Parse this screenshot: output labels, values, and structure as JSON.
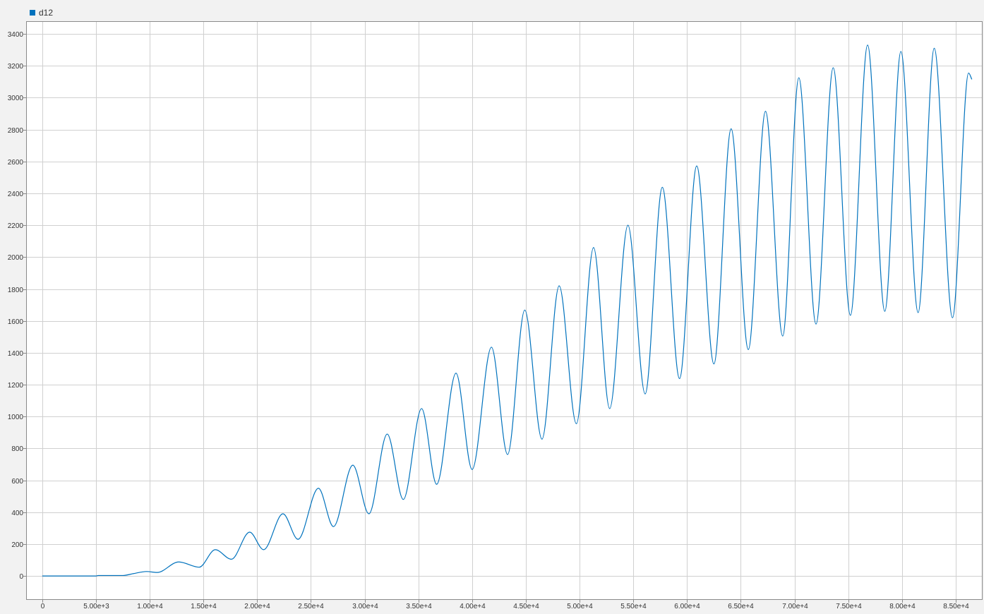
{
  "legend": {
    "series_name": "d12"
  },
  "colors": {
    "series": "#0072bd",
    "grid": "#d0d0d0",
    "plot_background": "#ffffff",
    "axis": "#8a8a8a"
  },
  "chart_data": {
    "type": "line",
    "title": "",
    "xlabel": "",
    "ylabel": "",
    "xlim": [
      -1500,
      87500
    ],
    "ylim": [
      -150,
      3480
    ],
    "grid": true,
    "legend_position": "top-left",
    "x_ticks": [
      0,
      5000,
      10000,
      15000,
      20000,
      25000,
      30000,
      35000,
      40000,
      45000,
      50000,
      55000,
      60000,
      65000,
      70000,
      75000,
      80000,
      85000
    ],
    "x_tick_labels": [
      "0",
      "5.00e+3",
      "1.00e+4",
      "1.50e+4",
      "2.00e+4",
      "2.50e+4",
      "3.00e+4",
      "3.50e+4",
      "4.00e+4",
      "4.50e+4",
      "5.00e+4",
      "5.50e+4",
      "6.00e+4",
      "6.50e+4",
      "7.00e+4",
      "7.50e+4",
      "8.00e+4",
      "8.50e+4"
    ],
    "y_ticks": [
      0,
      200,
      400,
      600,
      800,
      1000,
      1200,
      1400,
      1600,
      1800,
      2000,
      2200,
      2400,
      2600,
      2800,
      3000,
      3200,
      3400
    ],
    "y_tick_labels": [
      "0",
      "200",
      "400",
      "600",
      "800",
      "1000",
      "1200",
      "1400",
      "1600",
      "1800",
      "2000",
      "2200",
      "2400",
      "2600",
      "2800",
      "3000",
      "3200",
      "3400"
    ],
    "series": [
      {
        "name": "d12",
        "color": "#0072bd",
        "points": [
          [
            0,
            0
          ],
          [
            5000,
            0
          ],
          [
            5200,
            3
          ],
          [
            7500,
            3
          ],
          [
            8500,
            15
          ],
          [
            9700,
            28
          ],
          [
            10700,
            22
          ],
          [
            12700,
            88
          ],
          [
            14600,
            55
          ],
          [
            16100,
            165
          ],
          [
            17600,
            105
          ],
          [
            19300,
            275
          ],
          [
            20600,
            165
          ],
          [
            22400,
            390
          ],
          [
            23800,
            230
          ],
          [
            25700,
            550
          ],
          [
            27100,
            310
          ],
          [
            28900,
            695
          ],
          [
            30400,
            390
          ],
          [
            32100,
            890
          ],
          [
            33600,
            480
          ],
          [
            35300,
            1050
          ],
          [
            36700,
            575
          ],
          [
            38500,
            1272
          ],
          [
            40000,
            668
          ],
          [
            41800,
            1435
          ],
          [
            43300,
            762
          ],
          [
            44900,
            1668
          ],
          [
            46500,
            858
          ],
          [
            48100,
            1820
          ],
          [
            49700,
            955
          ],
          [
            51300,
            2060
          ],
          [
            52800,
            1050
          ],
          [
            54500,
            2200
          ],
          [
            56100,
            1142
          ],
          [
            57700,
            2438
          ],
          [
            59300,
            1238
          ],
          [
            60900,
            2572
          ],
          [
            62500,
            1330
          ],
          [
            64100,
            2805
          ],
          [
            65700,
            1420
          ],
          [
            67300,
            2915
          ],
          [
            68900,
            1505
          ],
          [
            70400,
            3125
          ],
          [
            72000,
            1580
          ],
          [
            73600,
            3188
          ],
          [
            75200,
            1635
          ],
          [
            76800,
            3330
          ],
          [
            78400,
            1660
          ],
          [
            79900,
            3290
          ],
          [
            81500,
            1652
          ],
          [
            83000,
            3310
          ],
          [
            84700,
            1620
          ],
          [
            86200,
            3155
          ],
          [
            86500,
            3115
          ]
        ]
      }
    ]
  }
}
